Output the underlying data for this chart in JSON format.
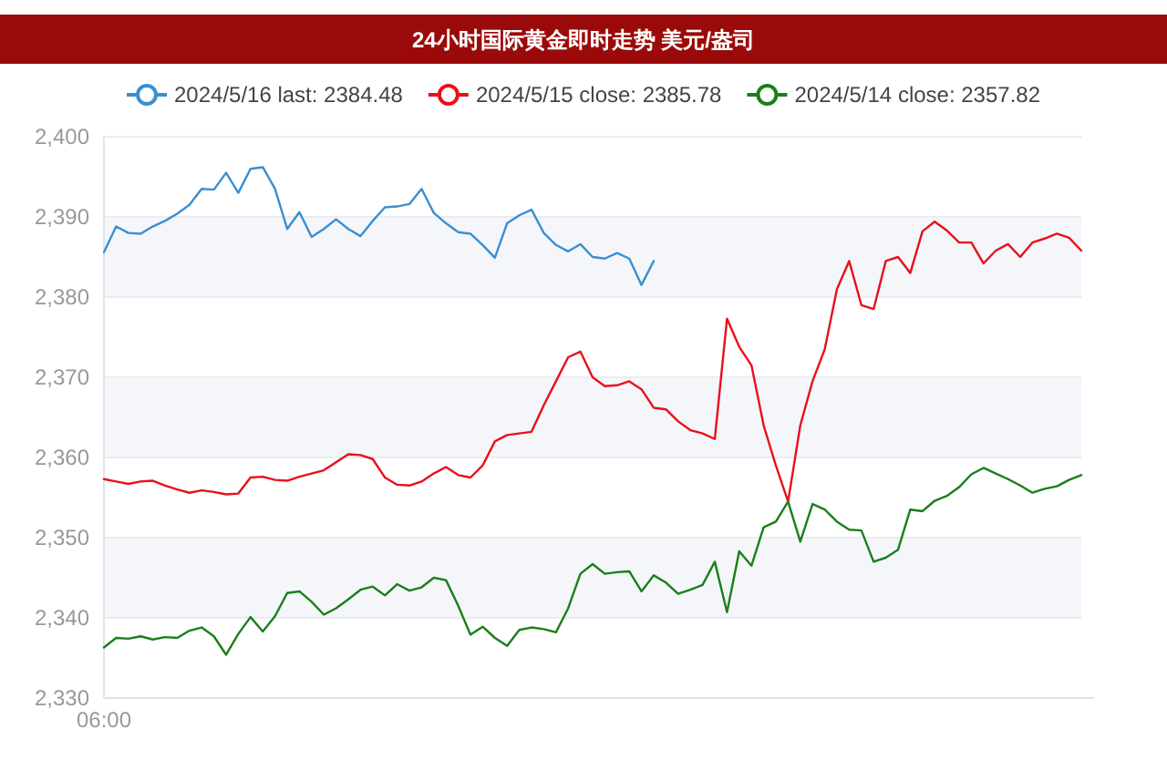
{
  "chart_data": {
    "type": "line",
    "title": "24小时国际黄金即时走势 美元/盎司",
    "categories": [
      "06:00",
      null,
      null,
      null,
      null,
      null,
      null,
      null,
      null,
      null,
      null,
      null,
      null,
      null,
      null,
      null,
      null,
      null,
      null,
      null,
      null,
      null,
      null,
      null,
      null,
      null,
      null,
      null,
      null,
      null,
      null,
      null,
      null,
      null,
      null,
      null,
      null,
      null,
      null,
      null,
      null,
      null,
      null,
      null,
      null,
      null,
      null,
      null,
      null,
      null,
      null,
      null,
      null,
      null,
      null,
      null,
      null,
      null,
      null,
      null,
      null,
      null,
      null,
      null,
      null,
      null,
      null,
      null,
      null,
      null,
      null,
      null,
      null,
      null,
      null,
      null,
      null,
      null,
      null,
      null,
      null
    ],
    "series": [
      {
        "name": "2024/5/16 last: 2384.48",
        "color": "#3a8fd0",
        "values": [
          2385.6,
          2388.8,
          2388,
          2387.9,
          2388.8,
          2389.5,
          2390.4,
          2391.5,
          2393.5,
          2393.4,
          2395.5,
          2393,
          2396,
          2396.2,
          2393.5,
          2388.5,
          2390.6,
          2387.5,
          2388.5,
          2389.7,
          2388.5,
          2387.6,
          2389.5,
          2391.2,
          2391.3,
          2391.6,
          2393.5,
          2390.5,
          2389.2,
          2388.1,
          2387.9,
          2386.5,
          2384.9,
          2389.2,
          2390.2,
          2390.9,
          2388,
          2386.5,
          2385.7,
          2386.6,
          2385,
          2384.8,
          2385.5,
          2384.8,
          2381.5,
          2384.5,
          null,
          null,
          null,
          null,
          null,
          null,
          null,
          null,
          null,
          null,
          null,
          null,
          null,
          null,
          null,
          null,
          null,
          null,
          null,
          null,
          null,
          null,
          null,
          null,
          null,
          null,
          null,
          null,
          null,
          null,
          null,
          null,
          null,
          null,
          null
        ]
      },
      {
        "name": "2024/5/15 close: 2385.78",
        "color": "#e8101a",
        "values": [
          2357.3,
          2357,
          2356.7,
          2357,
          2357.1,
          2356.5,
          2356,
          2355.6,
          2355.9,
          2355.7,
          2355.4,
          2355.5,
          2357.5,
          2357.6,
          2357.2,
          2357.1,
          2357.6,
          2358,
          2358.4,
          2359.4,
          2360.4,
          2360.3,
          2359.8,
          2357.5,
          2356.6,
          2356.5,
          2357,
          2358,
          2358.8,
          2357.8,
          2357.5,
          2359,
          2362,
          2362.8,
          2363,
          2363.2,
          2366.5,
          2369.5,
          2372.5,
          2373.2,
          2370,
          2368.9,
          2369,
          2369.5,
          2368.5,
          2366.2,
          2366,
          2364.5,
          2363.4,
          2363,
          2362.3,
          2377.3,
          2373.8,
          2371.5,
          2364,
          2359,
          2354.5,
          2364,
          2369.5,
          2373.5,
          2381,
          2384.5,
          2379,
          2378.5,
          2384.5,
          2385,
          2383,
          2388.2,
          2389.4,
          2388.3,
          2386.8,
          2386.8,
          2384.2,
          2385.8,
          2386.6,
          2385,
          2386.8,
          2387.3,
          2387.9,
          2387.4,
          2385.8
        ]
      },
      {
        "name": "2024/5/14 close: 2357.82",
        "color": "#1a7f1a",
        "values": [
          2336.3,
          2337.5,
          2337.4,
          2337.7,
          2337.3,
          2337.6,
          2337.5,
          2338.4,
          2338.8,
          2337.7,
          2335.4,
          2338,
          2340.1,
          2338.3,
          2340.2,
          2343.1,
          2343.3,
          2342,
          2340.4,
          2341.2,
          2342.3,
          2343.5,
          2343.9,
          2342.8,
          2344.2,
          2343.4,
          2343.8,
          2345,
          2344.7,
          2341.5,
          2337.9,
          2338.9,
          2337.5,
          2336.5,
          2338.5,
          2338.8,
          2338.6,
          2338.2,
          2341.2,
          2345.5,
          2346.7,
          2345.5,
          2345.7,
          2345.8,
          2343.3,
          2345.3,
          2344.4,
          2343,
          2343.5,
          2344.1,
          2347,
          2340.7,
          2348.3,
          2346.5,
          2351.3,
          2352,
          2354.5,
          2349.5,
          2354.2,
          2353.5,
          2352,
          2351,
          2350.9,
          2347,
          2347.5,
          2348.5,
          2353.5,
          2353.3,
          2354.6,
          2355.2,
          2356.3,
          2357.9,
          2358.7,
          2358,
          2357.3,
          2356.5,
          2355.6,
          2356.1,
          2356.4,
          2357.2,
          2357.8
        ]
      }
    ],
    "ylim": [
      2330,
      2400
    ],
    "yticks": [
      {
        "value": 2330,
        "label": "2,330"
      },
      {
        "value": 2340,
        "label": "2,340"
      },
      {
        "value": 2350,
        "label": "2,350"
      },
      {
        "value": 2360,
        "label": "2,360"
      },
      {
        "value": 2370,
        "label": "2,370"
      },
      {
        "value": 2380,
        "label": "2,380"
      },
      {
        "value": 2390,
        "label": "2,390"
      },
      {
        "value": 2400,
        "label": "2,400"
      }
    ],
    "grid": "y",
    "legend": "top"
  }
}
